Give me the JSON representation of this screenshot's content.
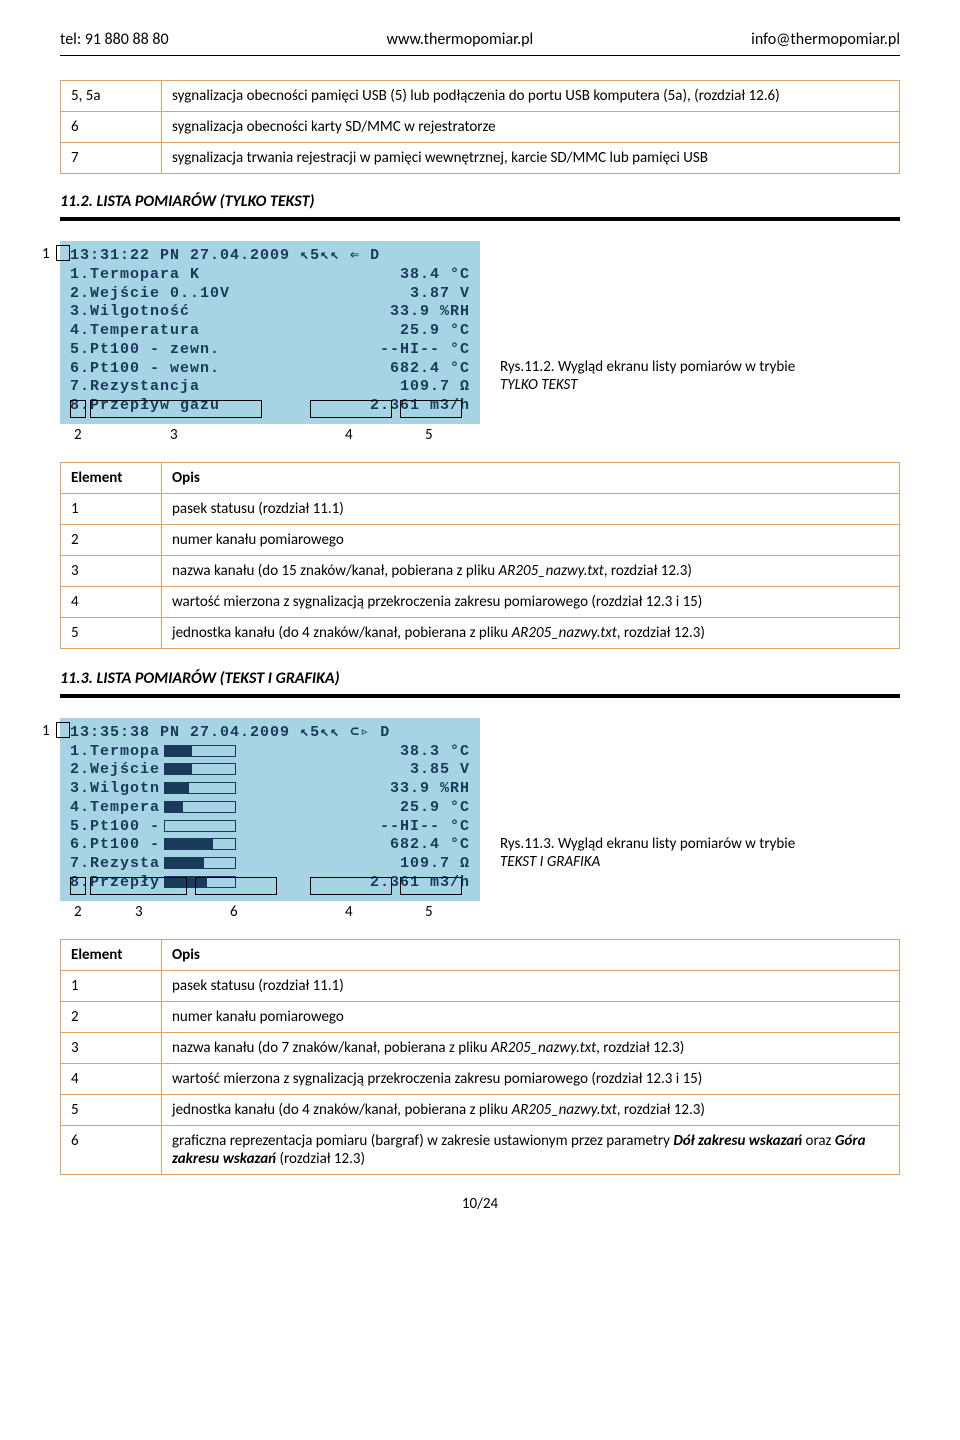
{
  "header": {
    "tel": "tel: 91 880 88 80",
    "www": "www.thermopomiar.pl",
    "email": "info@thermopomiar.pl"
  },
  "table1": {
    "rows": [
      {
        "c1": "5, 5a",
        "c2": "sygnalizacja obecności pamięci USB (5) lub podłączenia do portu USB komputera (5a), (rozdział 12.6)"
      },
      {
        "c1": "6",
        "c2": "sygnalizacja obecności karty SD/MMC w rejestratorze"
      },
      {
        "c1": "7",
        "c2": "sygnalizacja trwania rejestracji w pamięci wewnętrznej, karcie SD/MMC lub pamięci USB"
      }
    ]
  },
  "section112": {
    "heading": "11.2. LISTA POMIARÓW (TYLKO TEKST)",
    "lcd": {
      "status": "13:31:22 PN 27.04.2009 ↖5↖↖ ⇐ D",
      "rows": [
        {
          "num": "1",
          "name": ".Termopara K",
          "val": "38.4",
          "unit": "°C"
        },
        {
          "num": "2",
          "name": ".Wejście 0..10V",
          "val": "3.87",
          "unit": "V"
        },
        {
          "num": "3",
          "name": ".Wilgotność",
          "val": "33.9",
          "unit": "%RH"
        },
        {
          "num": "4",
          "name": ".Temperatura",
          "val": "25.9",
          "unit": "°C"
        },
        {
          "num": "5",
          "name": ".Pt100 - zewn.",
          "val": "--HI--",
          "unit": "°C"
        },
        {
          "num": "6",
          "name": ".Pt100 - wewn.",
          "val": "682.4",
          "unit": "°C"
        },
        {
          "num": "7",
          "name": ".Rezystancja",
          "val": "109.7",
          "unit": "Ω"
        },
        {
          "num": "8",
          "name": ".Przepływ gazu",
          "val": "2.361",
          "unit": "m3/h"
        }
      ],
      "callouts": {
        "l1": "1",
        "l2": "2",
        "l3": "3",
        "l4": "4",
        "l5": "5"
      }
    },
    "caption": {
      "prefix": "Rys.11.2. Wygląd ekranu listy pomiarów w trybie ",
      "mode": "TYLKO TEKST"
    },
    "desc": {
      "h1": "Element",
      "h2": "Opis",
      "rows": [
        {
          "c1": "1",
          "c2": "pasek statusu (rozdział 11.1)"
        },
        {
          "c1": "2",
          "c2": "numer kanału pomiarowego"
        },
        {
          "c1": "3",
          "c2_pre": "nazwa kanału (do 15 znaków/kanał, pobierana z pliku ",
          "c2_it": "AR205_nazwy.txt",
          "c2_post": ", rozdział 12.3)"
        },
        {
          "c1": "4",
          "c2": "wartość mierzona z sygnalizacją przekroczenia zakresu pomiarowego (rozdział 12.3 i 15)"
        },
        {
          "c1": "5",
          "c2_pre": "jednostka kanału (do 4 znaków/kanał, pobierana z pliku ",
          "c2_it": "AR205_nazwy.txt",
          "c2_post": ", rozdział 12.3)"
        }
      ]
    }
  },
  "section113": {
    "heading": "11.3. LISTA POMIARÓW (TEKST I GRAFIKA)",
    "lcd": {
      "status": "13:35:38 PN 27.04.2009 ↖5↖↖ ⊂▹ D",
      "rows": [
        {
          "num": "1",
          "name": ".Termopa",
          "bar": 38,
          "val": "38.3",
          "unit": "°C"
        },
        {
          "num": "2",
          "name": ".Wejście",
          "bar": 39,
          "val": "3.85",
          "unit": "V"
        },
        {
          "num": "3",
          "name": ".Wilgotn",
          "bar": 34,
          "val": "33.9",
          "unit": "%RH"
        },
        {
          "num": "4",
          "name": ".Tempera",
          "bar": 26,
          "val": "25.9",
          "unit": "°C"
        },
        {
          "num": "5",
          "name": ".Pt100 -",
          "bar": 0,
          "val": "--HI--",
          "unit": "°C"
        },
        {
          "num": "6",
          "name": ".Pt100 -",
          "bar": 68,
          "val": "682.4",
          "unit": "°C"
        },
        {
          "num": "7",
          "name": ".Rezysta",
          "bar": 55,
          "val": "109.7",
          "unit": "Ω"
        },
        {
          "num": "8",
          "name": ".Przepły",
          "bar": 60,
          "val": "2.361",
          "unit": "m3/h"
        }
      ],
      "callouts": {
        "l1": "1",
        "l2": "2",
        "l3": "3",
        "l4": "4",
        "l5": "5",
        "l6": "6"
      }
    },
    "caption": {
      "prefix": "Rys.11.3. Wygląd ekranu listy pomiarów w trybie ",
      "mode": "TEKST I GRAFIKA"
    },
    "desc": {
      "h1": "Element",
      "h2": "Opis",
      "rows": [
        {
          "c1": "1",
          "c2": "pasek statusu (rozdział 11.1)"
        },
        {
          "c1": "2",
          "c2": "numer kanału pomiarowego"
        },
        {
          "c1": "3",
          "c2_pre": "nazwa kanału (do 7 znaków/kanał, pobierana z pliku ",
          "c2_it": "AR205_nazwy.txt",
          "c2_post": ", rozdział 12.3)"
        },
        {
          "c1": "4",
          "c2": "wartość mierzona z sygnalizacją przekroczenia zakresu pomiarowego (rozdział 12.3 i 15)"
        },
        {
          "c1": "5",
          "c2_pre": "jednostka kanału (do 4 znaków/kanał, pobierana z pliku ",
          "c2_it": "AR205_nazwy.txt",
          "c2_post": ", rozdział 12.3)"
        },
        {
          "c1": "6",
          "c2_pre": "graficzna reprezentacja pomiaru (bargraf) w zakresie ustawionym przez parametry ",
          "c2_it": "Dół zakresu wskazań",
          "c2_mid": " oraz ",
          "c2_it2": "Góra zakresu wskazań",
          "c2_post": " (rozdział 12.3)"
        }
      ]
    }
  },
  "pagenum": "10/24",
  "colors": {
    "lcd_bg": "#a7d4e4",
    "lcd_fg": "#1a3a5a",
    "table_border": "#d9a56b"
  }
}
